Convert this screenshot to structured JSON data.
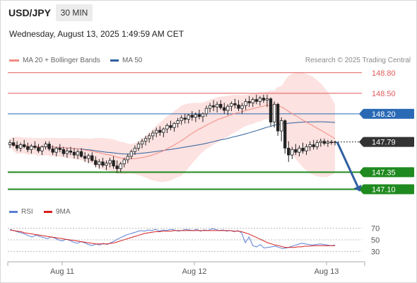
{
  "header": {
    "pair": "USD/JPY",
    "timeframe": "30 MIN",
    "datetime": "Wednesday, August 13, 2025 1:49:59 AM CET"
  },
  "legend": {
    "ma20_label": "MA 20 + Bollinger Bands",
    "ma20_color": "#f28b82",
    "ma50_label": "MA 50",
    "ma50_color": "#2f5f9e",
    "rsi_label": "RSI",
    "rsi_color": "#5b7fd6",
    "ma9_label": "9MA",
    "ma9_color": "#d62020"
  },
  "credit": "Research © 2025 Trading Central",
  "chart_data": [
    {
      "type": "candlestick",
      "title": "",
      "x_ticks": [
        "Aug 11",
        "Aug 12",
        "Aug 13"
      ],
      "ylim": [
        146.92,
        148.88
      ],
      "levels": [
        {
          "label": "148.80",
          "value": 148.8,
          "kind": "resistance",
          "color": "#e05a5a"
        },
        {
          "label": "148.50",
          "value": 148.5,
          "kind": "resistance",
          "color": "#e05a5a"
        },
        {
          "label": "148.20",
          "value": 148.2,
          "kind": "pivot",
          "color": "#2a6ab5"
        },
        {
          "label": "147.79",
          "value": 147.79,
          "kind": "last",
          "color": "#333333"
        },
        {
          "label": "147.35",
          "value": 147.35,
          "kind": "support",
          "color": "#1f8a1f"
        },
        {
          "label": "147.10",
          "value": 147.1,
          "kind": "support",
          "color": "#1f8a1f"
        }
      ],
      "forecast": {
        "from": 147.79,
        "to": 147.1
      },
      "candles": [
        [
          147.75,
          147.82,
          147.7,
          147.78
        ],
        [
          147.78,
          147.85,
          147.72,
          147.74
        ],
        [
          147.74,
          147.8,
          147.66,
          147.7
        ],
        [
          147.7,
          147.78,
          147.65,
          147.75
        ],
        [
          147.75,
          147.82,
          147.7,
          147.72
        ],
        [
          147.72,
          147.78,
          147.64,
          147.68
        ],
        [
          147.68,
          147.76,
          147.62,
          147.73
        ],
        [
          147.73,
          147.8,
          147.68,
          147.71
        ],
        [
          147.71,
          147.76,
          147.63,
          147.66
        ],
        [
          147.66,
          147.74,
          147.6,
          147.72
        ],
        [
          147.72,
          147.8,
          147.68,
          147.76
        ],
        [
          147.76,
          147.8,
          147.66,
          147.69
        ],
        [
          147.69,
          147.74,
          147.6,
          147.64
        ],
        [
          147.64,
          147.72,
          147.58,
          147.7
        ],
        [
          147.7,
          147.76,
          147.64,
          147.68
        ],
        [
          147.68,
          147.72,
          147.58,
          147.62
        ],
        [
          147.62,
          147.7,
          147.56,
          147.66
        ],
        [
          147.66,
          147.72,
          147.6,
          147.64
        ],
        [
          147.64,
          147.7,
          147.55,
          147.6
        ],
        [
          147.6,
          147.68,
          147.54,
          147.65
        ],
        [
          147.65,
          147.7,
          147.56,
          147.58
        ],
        [
          147.58,
          147.64,
          147.5,
          147.55
        ],
        [
          147.55,
          147.62,
          147.48,
          147.59
        ],
        [
          147.59,
          147.64,
          147.5,
          147.52
        ],
        [
          147.52,
          147.58,
          147.42,
          147.46
        ],
        [
          147.46,
          147.54,
          147.4,
          147.5
        ],
        [
          147.5,
          147.56,
          147.42,
          147.45
        ],
        [
          147.45,
          147.52,
          147.38,
          147.48
        ],
        [
          147.48,
          147.56,
          147.42,
          147.52
        ],
        [
          147.52,
          147.58,
          147.4,
          147.44
        ],
        [
          147.44,
          147.52,
          147.34,
          147.4
        ],
        [
          147.4,
          147.5,
          147.35,
          147.47
        ],
        [
          147.47,
          147.56,
          147.42,
          147.53
        ],
        [
          147.53,
          147.62,
          147.48,
          147.58
        ],
        [
          147.58,
          147.68,
          147.54,
          147.65
        ],
        [
          147.65,
          147.74,
          147.6,
          147.7
        ],
        [
          147.7,
          147.8,
          147.66,
          147.76
        ],
        [
          147.76,
          147.84,
          147.7,
          147.8
        ],
        [
          147.8,
          147.88,
          147.74,
          147.84
        ],
        [
          147.84,
          147.92,
          147.78,
          147.88
        ],
        [
          147.88,
          147.96,
          147.82,
          147.92
        ],
        [
          147.92,
          148.0,
          147.86,
          147.96
        ],
        [
          147.96,
          148.02,
          147.88,
          147.93
        ],
        [
          147.93,
          148.0,
          147.86,
          147.98
        ],
        [
          147.98,
          148.06,
          147.92,
          148.03
        ],
        [
          148.03,
          148.1,
          147.96,
          148.0
        ],
        [
          148.0,
          148.08,
          147.94,
          148.06
        ],
        [
          148.06,
          148.14,
          148.0,
          148.1
        ],
        [
          148.1,
          148.18,
          148.04,
          148.14
        ],
        [
          148.14,
          148.2,
          148.06,
          148.12
        ],
        [
          148.12,
          148.2,
          148.06,
          148.18
        ],
        [
          148.18,
          148.24,
          148.1,
          148.15
        ],
        [
          148.15,
          148.22,
          148.08,
          148.19
        ],
        [
          148.19,
          148.26,
          148.12,
          148.16
        ],
        [
          148.16,
          148.22,
          148.08,
          148.2
        ],
        [
          148.2,
          148.32,
          148.16,
          148.28
        ],
        [
          148.28,
          148.36,
          148.22,
          148.32
        ],
        [
          148.32,
          148.4,
          148.24,
          148.3
        ],
        [
          148.3,
          148.38,
          148.22,
          148.34
        ],
        [
          148.34,
          148.4,
          148.26,
          148.29
        ],
        [
          148.29,
          148.36,
          148.2,
          148.25
        ],
        [
          148.25,
          148.34,
          148.18,
          148.31
        ],
        [
          148.31,
          148.38,
          148.24,
          148.35
        ],
        [
          148.35,
          148.42,
          148.28,
          148.33
        ],
        [
          148.33,
          148.4,
          148.24,
          148.28
        ],
        [
          148.28,
          148.36,
          148.2,
          148.32
        ],
        [
          148.32,
          148.42,
          148.26,
          148.38
        ],
        [
          148.38,
          148.46,
          148.3,
          148.36
        ],
        [
          148.36,
          148.44,
          148.3,
          148.41
        ],
        [
          148.41,
          148.48,
          148.34,
          148.38
        ],
        [
          148.38,
          148.46,
          148.32,
          148.43
        ],
        [
          148.43,
          148.48,
          148.36,
          148.4
        ],
        [
          148.4,
          148.48,
          148.3,
          148.42
        ],
        [
          148.42,
          148.44,
          148.02,
          148.08
        ],
        [
          148.08,
          148.38,
          148.0,
          148.34
        ],
        [
          148.34,
          148.36,
          147.88,
          147.95
        ],
        [
          147.95,
          148.15,
          147.8,
          148.1
        ],
        [
          148.1,
          148.12,
          147.62,
          147.7
        ],
        [
          147.7,
          147.8,
          147.5,
          147.6
        ],
        [
          147.6,
          147.72,
          147.54,
          147.68
        ],
        [
          147.68,
          147.76,
          147.6,
          147.64
        ],
        [
          147.64,
          147.74,
          147.58,
          147.7
        ],
        [
          147.7,
          147.78,
          147.62,
          147.66
        ],
        [
          147.66,
          147.76,
          147.6,
          147.72
        ],
        [
          147.72,
          147.8,
          147.66,
          147.75
        ],
        [
          147.75,
          147.82,
          147.68,
          147.72
        ],
        [
          147.72,
          147.82,
          147.68,
          147.78
        ],
        [
          147.78,
          147.84,
          147.72,
          147.8
        ],
        [
          147.8,
          147.84,
          147.74,
          147.77
        ],
        [
          147.77,
          147.82,
          147.72,
          147.79
        ],
        [
          147.79,
          147.82,
          147.75,
          147.78
        ],
        [
          147.78,
          147.81,
          147.74,
          147.79
        ]
      ]
    },
    {
      "type": "line",
      "title": "RSI",
      "yticks": [
        70,
        50,
        30
      ],
      "ylim": [
        22,
        78
      ],
      "x_ticks": [
        "Aug 11",
        "Aug 12",
        "Aug 13"
      ],
      "series": [
        {
          "name": "RSI",
          "values": [
            68,
            66,
            64,
            62,
            60,
            57,
            55,
            58,
            56,
            54,
            52,
            55,
            53,
            50,
            48,
            51,
            49,
            46,
            44,
            47,
            45,
            42,
            40,
            43,
            41,
            44,
            42,
            45,
            48,
            52,
            55,
            58,
            60,
            62,
            64,
            66,
            65,
            67,
            66,
            68,
            65,
            67,
            66,
            68,
            67,
            65,
            66,
            68,
            67,
            66,
            68,
            65,
            67,
            66,
            69,
            68,
            66,
            67,
            65,
            66,
            64,
            66,
            62,
            45,
            55,
            40,
            38,
            42,
            36,
            37,
            38,
            39,
            37,
            35,
            36,
            38,
            40,
            42,
            44,
            43,
            42,
            41,
            42,
            43,
            42,
            41,
            40,
            41
          ]
        },
        {
          "name": "9MA",
          "values": [
            67,
            66,
            65,
            64,
            62,
            61,
            60,
            59,
            58,
            57,
            56,
            55,
            54,
            53,
            52,
            51,
            50,
            49,
            48,
            47,
            46,
            45,
            44,
            43,
            43,
            43,
            43,
            44,
            45,
            47,
            49,
            51,
            53,
            55,
            57,
            59,
            61,
            62,
            63,
            64,
            64,
            65,
            65,
            65,
            66,
            66,
            66,
            66,
            66,
            66,
            66,
            66,
            66,
            66,
            66,
            66,
            66,
            66,
            66,
            66,
            65,
            65,
            64,
            62,
            60,
            57,
            54,
            51,
            48,
            45,
            43,
            41,
            40,
            38,
            37,
            37,
            37,
            38,
            38,
            39,
            39,
            40,
            40,
            40,
            40,
            40,
            40,
            40
          ]
        }
      ]
    }
  ]
}
